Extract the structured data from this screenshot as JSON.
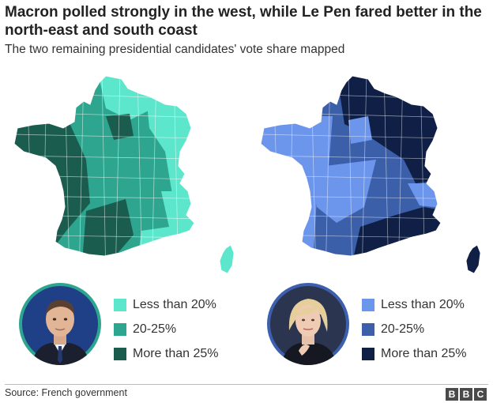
{
  "header": {
    "title": "Macron polled strongly in the west, while Le Pen fared better in the north-east and south coast",
    "subtitle": "The two remaining presidential candidates' vote share mapped"
  },
  "candidates": [
    {
      "name": "Macron",
      "regional_pattern": "strongest in the west",
      "colors": {
        "low": "#5ce6cc",
        "mid": "#2ea58f",
        "high": "#1a5c4e"
      },
      "legend": [
        {
          "label": "Less than 20%"
        },
        {
          "label": "20-25%"
        },
        {
          "label": "More than 25%"
        }
      ]
    },
    {
      "name": "Le Pen",
      "regional_pattern": "strongest in the north-east and south coast",
      "colors": {
        "low": "#6c95ec",
        "mid": "#3c5faa",
        "high": "#0f1f45"
      },
      "legend": [
        {
          "label": "Less than 20%"
        },
        {
          "label": "20-25%"
        },
        {
          "label": "More than 25%"
        }
      ]
    }
  ],
  "footer": {
    "source": "Source: French government",
    "logo_letters": [
      "B",
      "B",
      "C"
    ]
  }
}
